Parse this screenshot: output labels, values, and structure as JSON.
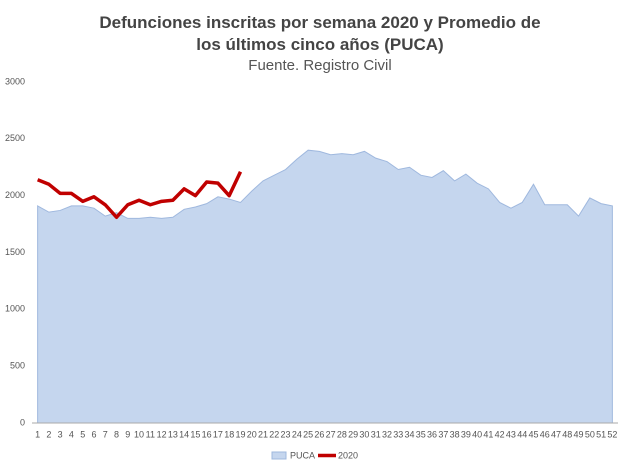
{
  "chart_data": {
    "type": "area_line",
    "title": "Defunciones inscritas por semana 2020 y Promedio de los últimos cinco años (PUCA)",
    "subtitle": "Fuente. Registro Civil",
    "categories": [
      1,
      2,
      3,
      4,
      5,
      6,
      7,
      8,
      9,
      10,
      11,
      12,
      13,
      14,
      15,
      16,
      17,
      18,
      19,
      20,
      21,
      22,
      23,
      24,
      25,
      26,
      27,
      28,
      29,
      30,
      31,
      32,
      33,
      34,
      35,
      36,
      37,
      38,
      39,
      40,
      41,
      42,
      43,
      44,
      45,
      46,
      47,
      48,
      49,
      50,
      51,
      52
    ],
    "series": [
      {
        "name": "PUCA",
        "color": "#c5d6ee",
        "kind": "area",
        "values": [
          1910,
          1855,
          1870,
          1910,
          1910,
          1890,
          1820,
          1850,
          1800,
          1800,
          1810,
          1800,
          1810,
          1880,
          1900,
          1930,
          1990,
          1970,
          1940,
          2040,
          2130,
          2180,
          2230,
          2320,
          2400,
          2390,
          2360,
          2370,
          2360,
          2390,
          2330,
          2300,
          2230,
          2250,
          2180,
          2160,
          2220,
          2130,
          2190,
          2110,
          2060,
          1940,
          1890,
          1940,
          2100,
          1920,
          1920,
          1920,
          1820,
          1980,
          1930,
          1910
        ]
      },
      {
        "name": "2020",
        "color": "#c00000",
        "kind": "line",
        "values": [
          2140,
          2100,
          2020,
          2020,
          1950,
          1990,
          1920,
          1810,
          1920,
          1960,
          1920,
          1950,
          1960,
          2060,
          2000,
          2120,
          2110,
          2000,
          2210,
          null,
          null,
          null,
          null,
          null,
          null,
          null,
          null,
          null,
          null,
          null,
          null,
          null,
          null,
          null,
          null,
          null,
          null,
          null,
          null,
          null,
          null,
          null,
          null,
          null,
          null,
          null,
          null,
          null,
          null,
          null,
          null,
          null
        ]
      }
    ],
    "ylim": [
      0,
      3000
    ],
    "yticks": [
      0,
      500,
      1000,
      1500,
      2000,
      2500,
      3000
    ],
    "grid": false,
    "legend": "bottom"
  }
}
